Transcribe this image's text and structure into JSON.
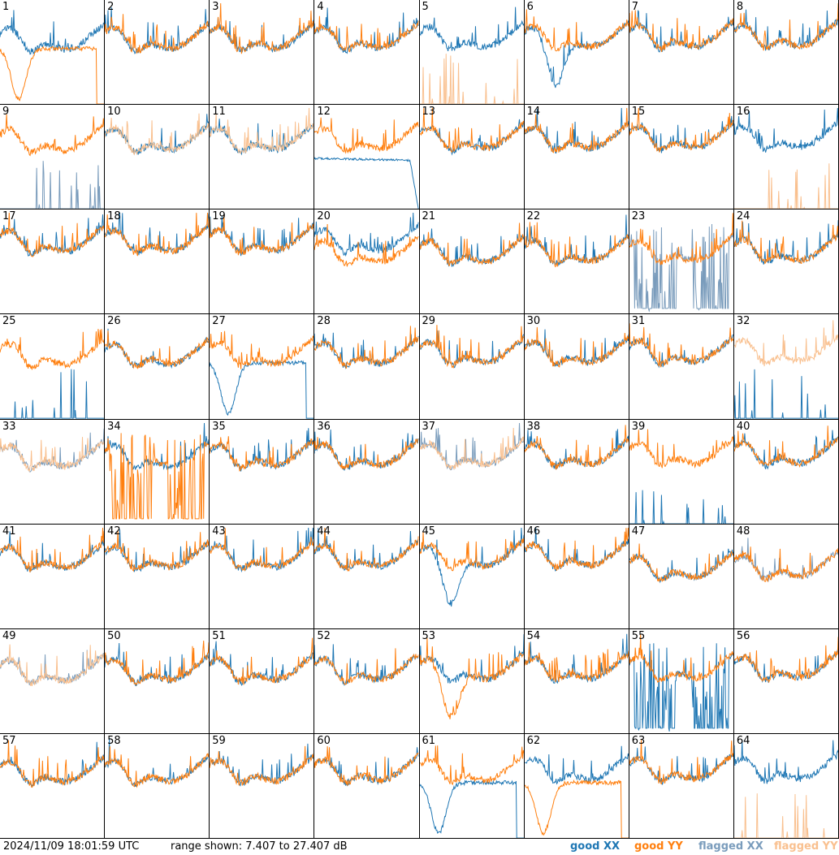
{
  "footer": {
    "timestamp": "2024/11/09 18:01:59 UTC",
    "range_text": "range shown: 7.407 to 27.407 dB",
    "legend": [
      "good XX",
      "good YY",
      "flagged XX",
      "flagged YY"
    ]
  },
  "colors": {
    "good_xx": "#1f77b4",
    "good_yy": "#ff7f0e",
    "flagged_xx": "#7a9cbc",
    "flagged_yy": "#f9c08f"
  },
  "chart_data": {
    "type": "line",
    "title": "",
    "xlabel": "",
    "ylabel": "",
    "ylim": [
      7.407,
      27.407
    ],
    "unit": "dB",
    "grid": false,
    "legend_placement": "bottom-right",
    "panels": [
      {
        "id": 1,
        "xx": "good",
        "yy": "good",
        "anomaly": "yy_dip_dropout"
      },
      {
        "id": 2,
        "xx": "good",
        "yy": "good"
      },
      {
        "id": 3,
        "xx": "good",
        "yy": "good"
      },
      {
        "id": 4,
        "xx": "good",
        "yy": "good"
      },
      {
        "id": 5,
        "xx": "good",
        "yy": "flagged",
        "anomaly": "yy_spiky_low"
      },
      {
        "id": 6,
        "xx": "good",
        "yy": "good",
        "anomaly": "xx_dip"
      },
      {
        "id": 7,
        "xx": "good",
        "yy": "good"
      },
      {
        "id": 8,
        "xx": "good",
        "yy": "good"
      },
      {
        "id": 9,
        "xx": "flagged",
        "yy": "good",
        "anomaly": "xx_spiky_low"
      },
      {
        "id": 10,
        "xx": "good",
        "yy": "flagged"
      },
      {
        "id": 11,
        "xx": "good",
        "yy": "flagged"
      },
      {
        "id": 12,
        "xx": "good",
        "yy": "good",
        "anomaly": "xx_smooth_drop"
      },
      {
        "id": 13,
        "xx": "good",
        "yy": "good"
      },
      {
        "id": 14,
        "xx": "good",
        "yy": "good"
      },
      {
        "id": 15,
        "xx": "good",
        "yy": "good"
      },
      {
        "id": 16,
        "xx": "good",
        "yy": "flagged",
        "anomaly": "yy_spiky_low"
      },
      {
        "id": 17,
        "xx": "good",
        "yy": "good"
      },
      {
        "id": 18,
        "xx": "good",
        "yy": "good"
      },
      {
        "id": 19,
        "xx": "good",
        "yy": "good"
      },
      {
        "id": 20,
        "xx": "good",
        "yy": "good"
      },
      {
        "id": 21,
        "xx": "good",
        "yy": "good"
      },
      {
        "id": 22,
        "xx": "good",
        "yy": "good"
      },
      {
        "id": 23,
        "xx": "flagged",
        "yy": "good",
        "anomaly": "xx_noisy_blocks"
      },
      {
        "id": 24,
        "xx": "good",
        "yy": "good"
      },
      {
        "id": 25,
        "xx": "good",
        "yy": "good",
        "anomaly": "xx_spiky_low"
      },
      {
        "id": 26,
        "xx": "good",
        "yy": "good"
      },
      {
        "id": 27,
        "xx": "good",
        "yy": "good",
        "anomaly": "xx_dip_dropout"
      },
      {
        "id": 28,
        "xx": "good",
        "yy": "good"
      },
      {
        "id": 29,
        "xx": "good",
        "yy": "good"
      },
      {
        "id": 30,
        "xx": "good",
        "yy": "good"
      },
      {
        "id": 31,
        "xx": "good",
        "yy": "good"
      },
      {
        "id": 32,
        "xx": "good",
        "yy": "flagged",
        "anomaly": "xx_spiky_low"
      },
      {
        "id": 33,
        "xx": "flagged",
        "yy": "flagged"
      },
      {
        "id": 34,
        "xx": "good",
        "yy": "good",
        "anomaly": "yy_noisy_blocks"
      },
      {
        "id": 35,
        "xx": "good",
        "yy": "good"
      },
      {
        "id": 36,
        "xx": "good",
        "yy": "good"
      },
      {
        "id": 37,
        "xx": "flagged",
        "yy": "flagged"
      },
      {
        "id": 38,
        "xx": "good",
        "yy": "good"
      },
      {
        "id": 39,
        "xx": "good",
        "yy": "good",
        "anomaly": "xx_spiky_low"
      },
      {
        "id": 40,
        "xx": "good",
        "yy": "good"
      },
      {
        "id": 41,
        "xx": "good",
        "yy": "good"
      },
      {
        "id": 42,
        "xx": "good",
        "yy": "good"
      },
      {
        "id": 43,
        "xx": "good",
        "yy": "good"
      },
      {
        "id": 44,
        "xx": "good",
        "yy": "good"
      },
      {
        "id": 45,
        "xx": "good",
        "yy": "good",
        "anomaly": "xx_dip"
      },
      {
        "id": 46,
        "xx": "good",
        "yy": "good"
      },
      {
        "id": 47,
        "xx": "good",
        "yy": "good"
      },
      {
        "id": 48,
        "xx": "flagged",
        "yy": "good"
      },
      {
        "id": 49,
        "xx": "flagged",
        "yy": "flagged"
      },
      {
        "id": 50,
        "xx": "good",
        "yy": "good"
      },
      {
        "id": 51,
        "xx": "good",
        "yy": "good"
      },
      {
        "id": 52,
        "xx": "good",
        "yy": "good"
      },
      {
        "id": 53,
        "xx": "good",
        "yy": "good",
        "anomaly": "yy_dip"
      },
      {
        "id": 54,
        "xx": "good",
        "yy": "good"
      },
      {
        "id": 55,
        "xx": "good",
        "yy": "good",
        "anomaly": "xx_noisy_blocks"
      },
      {
        "id": 56,
        "xx": "good",
        "yy": "good"
      },
      {
        "id": 57,
        "xx": "good",
        "yy": "good"
      },
      {
        "id": 58,
        "xx": "good",
        "yy": "good"
      },
      {
        "id": 59,
        "xx": "good",
        "yy": "good"
      },
      {
        "id": 60,
        "xx": "good",
        "yy": "good"
      },
      {
        "id": 61,
        "xx": "good",
        "yy": "good",
        "anomaly": "xx_dip_dropout"
      },
      {
        "id": 62,
        "xx": "good",
        "yy": "good",
        "anomaly": "yy_dip_dropout"
      },
      {
        "id": 63,
        "xx": "good",
        "yy": "good"
      },
      {
        "id": 64,
        "xx": "good",
        "yy": "flagged",
        "anomaly": "yy_spiky_low"
      }
    ]
  }
}
